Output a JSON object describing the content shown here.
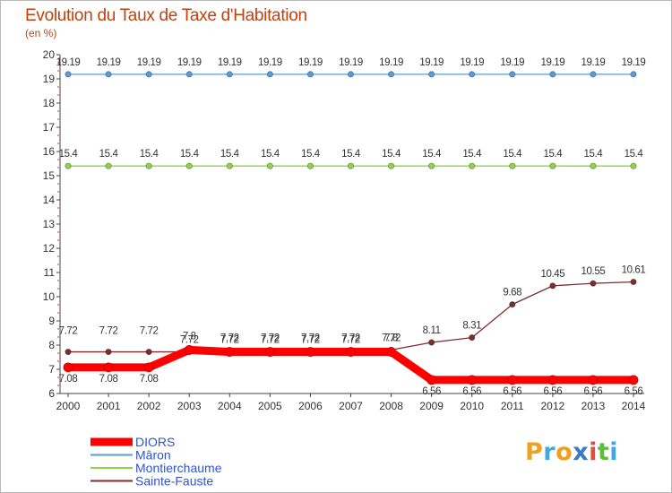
{
  "header": {
    "title": "Evolution du Taux de Taxe d'Habitation",
    "subtitle": "(en %)"
  },
  "chart_data": {
    "type": "line",
    "title": "Evolution du Taux de Taxe d'Habitation",
    "subtitle": "(en %)",
    "xlabel": "",
    "ylabel": "",
    "x": [
      "2000",
      "2001",
      "2002",
      "2003",
      "2004",
      "2005",
      "2006",
      "2007",
      "2008",
      "2009",
      "2010",
      "2011",
      "2012",
      "2013",
      "2014"
    ],
    "ylim": [
      6,
      20
    ],
    "yticks": [
      6,
      7,
      8,
      9,
      10,
      11,
      12,
      13,
      14,
      15,
      16,
      17,
      18,
      19,
      20
    ],
    "grid": false,
    "legend_position": "bottom-left",
    "series": [
      {
        "name": "DIORS",
        "color": "#ff0000",
        "values": [
          7.08,
          7.08,
          7.08,
          7.8,
          7.72,
          7.72,
          7.72,
          7.72,
          7.72,
          6.56,
          6.56,
          6.56,
          6.56,
          6.56,
          6.56
        ],
        "labels": [
          "7.08",
          "7.08",
          "7.08",
          "7.8",
          "7.72",
          "7.72",
          "7.72",
          "7.72",
          "7.72",
          "6.56",
          "6.56",
          "6.56",
          "6.56",
          "6.56",
          "6.56"
        ]
      },
      {
        "name": "Mâron",
        "color": "#5b9bd5",
        "values": [
          19.19,
          19.19,
          19.19,
          19.19,
          19.19,
          19.19,
          19.19,
          19.19,
          19.19,
          19.19,
          19.19,
          19.19,
          19.19,
          19.19,
          19.19
        ],
        "labels": [
          "19.19",
          "19.19",
          "19.19",
          "19.19",
          "19.19",
          "19.19",
          "19.19",
          "19.19",
          "19.19",
          "19.19",
          "19.19",
          "19.19",
          "19.19",
          "19.19",
          "19.19"
        ]
      },
      {
        "name": "Montierchaume",
        "color": "#8ed444",
        "values": [
          15.4,
          15.4,
          15.4,
          15.4,
          15.4,
          15.4,
          15.4,
          15.4,
          15.4,
          15.4,
          15.4,
          15.4,
          15.4,
          15.4,
          15.4
        ],
        "labels": [
          "15.4",
          "15.4",
          "15.4",
          "15.4",
          "15.4",
          "15.4",
          "15.4",
          "15.4",
          "15.4",
          "15.4",
          "15.4",
          "15.4",
          "15.4",
          "15.4",
          "15.4"
        ]
      },
      {
        "name": "Sainte-Fauste",
        "color": "#7a2e2e",
        "values": [
          7.72,
          7.72,
          7.72,
          7.72,
          7.72,
          7.72,
          7.72,
          7.72,
          7.8,
          8.11,
          8.31,
          9.68,
          10.45,
          10.55,
          10.61
        ],
        "labels": [
          "7.72",
          "7.72",
          "7.72",
          "7.72",
          "7.72",
          "7.72",
          "7.72",
          "7.72",
          "7.8",
          "8.11",
          "8.31",
          "9.68",
          "10.45",
          "10.55",
          "10.61"
        ]
      }
    ]
  },
  "legend": {
    "items": [
      {
        "label": "DIORS",
        "color": "#ff0000"
      },
      {
        "label": "Mâron",
        "color": "#5b9bd5"
      },
      {
        "label": "Montierchaume",
        "color": "#8ed444"
      },
      {
        "label": "Sainte-Fauste",
        "color": "#7a2e2e"
      }
    ],
    "text_color": "#2f55d4"
  },
  "logo": {
    "letters": [
      {
        "ch": "P",
        "color": "#f0a020"
      },
      {
        "ch": "r",
        "color": "#3fa9e0"
      },
      {
        "ch": "o",
        "color": "#f0a020"
      },
      {
        "ch": "x",
        "color": "#3a78c8"
      },
      {
        "ch": "i",
        "color": "#e84c3c"
      },
      {
        "ch": "t",
        "color": "#5bbf3a"
      },
      {
        "ch": "i",
        "color": "#3fa9e0"
      }
    ]
  }
}
